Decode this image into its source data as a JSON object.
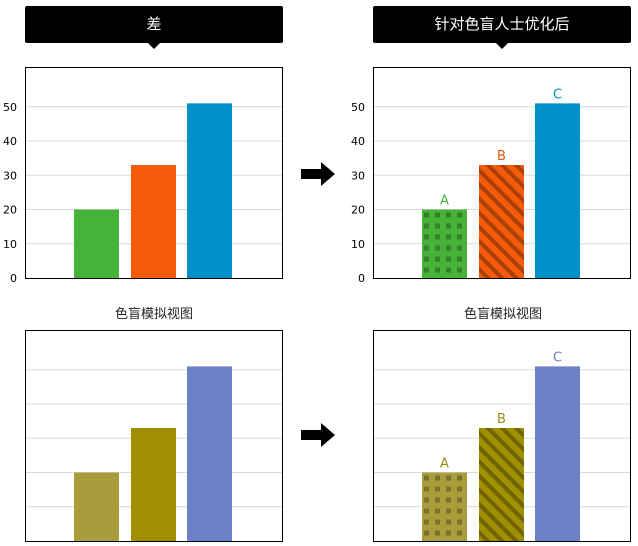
{
  "headers": {
    "left": "差",
    "right": "针对色盲人士优化后"
  },
  "section_labels": {
    "left": "色盲模拟视图",
    "right": "色盲模拟视图"
  },
  "chart_data": [
    {
      "type": "bar",
      "panel": "top-left",
      "categories": [
        "",
        "",
        ""
      ],
      "values": [
        20,
        33,
        51
      ],
      "colors": [
        "#46b338",
        "#f55b0a",
        "#0090c8"
      ],
      "patterns": [
        "none",
        "none",
        "none"
      ],
      "yticks": [
        0,
        10,
        20,
        30,
        40,
        50
      ],
      "ylim": [
        0,
        60
      ],
      "grid": true,
      "show_yticks": true,
      "show_bar_labels": false
    },
    {
      "type": "bar",
      "panel": "top-right",
      "categories": [
        "A",
        "B",
        "C"
      ],
      "values": [
        20,
        33,
        51
      ],
      "colors": [
        "#46b338",
        "#f55b0a",
        "#0090c8"
      ],
      "label_colors": [
        "#46b338",
        "#e0560f",
        "#0090c8"
      ],
      "patterns": [
        "dots",
        "stripes",
        "none"
      ],
      "yticks": [
        0,
        10,
        20,
        30,
        40,
        50
      ],
      "ylim": [
        0,
        60
      ],
      "grid": true,
      "show_yticks": true,
      "show_bar_labels": true
    },
    {
      "type": "bar",
      "panel": "bottom-left",
      "categories": [
        "",
        "",
        ""
      ],
      "values": [
        20,
        33,
        51
      ],
      "colors": [
        "#a99c3b",
        "#a08f00",
        "#6d80c8"
      ],
      "patterns": [
        "none",
        "none",
        "none"
      ],
      "yticks": [],
      "ylim": [
        0,
        60
      ],
      "grid": true,
      "show_yticks": false,
      "show_bar_labels": false
    },
    {
      "type": "bar",
      "panel": "bottom-right",
      "categories": [
        "A",
        "B",
        "C"
      ],
      "values": [
        20,
        33,
        51
      ],
      "colors": [
        "#a99c3b",
        "#a08f00",
        "#6d80c8"
      ],
      "label_colors": [
        "#9a8a10",
        "#9a8a10",
        "#6d80c8"
      ],
      "patterns": [
        "dots",
        "stripes",
        "none"
      ],
      "yticks": [],
      "ylim": [
        0,
        60
      ],
      "grid": true,
      "show_yticks": false,
      "show_bar_labels": true
    }
  ]
}
